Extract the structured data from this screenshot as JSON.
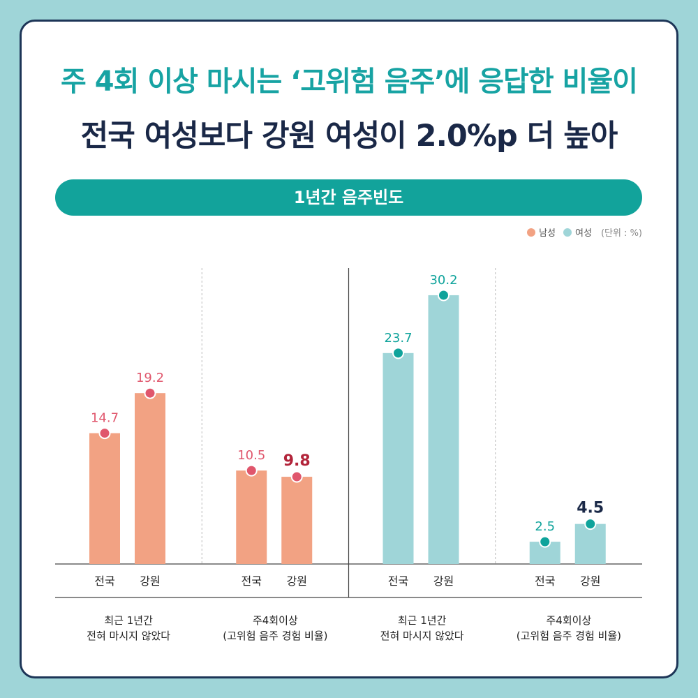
{
  "headline": {
    "line1": "주 4회 이상 마시는 ‘고위험 음주’에 응답한 비율이",
    "line2": "전국 여성보다 강원 여성이 2.0%p 더 높아"
  },
  "chart_title": "1년간 음주빈도",
  "legend": {
    "male": "남성",
    "female": "여성",
    "unit": "(단위 : %)"
  },
  "chart_data": {
    "type": "bar",
    "title": "1년간 음주빈도",
    "ylim": [
      0,
      32
    ],
    "categories": [
      "전국",
      "강원"
    ],
    "groups": [
      {
        "gender": "남성",
        "label": "최근 1년간\n전혀 마시지 않았다",
        "values": [
          14.7,
          19.2
        ],
        "highlight": [
          false,
          false
        ]
      },
      {
        "gender": "남성",
        "label": "주4회이상\n(고위험 음주 경험 비율)",
        "values": [
          10.5,
          9.8
        ],
        "highlight": [
          false,
          true
        ]
      },
      {
        "gender": "여성",
        "label": "최근 1년간\n전혀 마시지 않았다",
        "values": [
          23.7,
          30.2
        ],
        "highlight": [
          false,
          false
        ]
      },
      {
        "gender": "여성",
        "label": "주4회이상\n(고위험 음주 경험 비율)",
        "values": [
          2.5,
          4.5
        ],
        "highlight": [
          false,
          true
        ]
      }
    ]
  },
  "colors": {
    "male_bar": "#f2a283",
    "male_dot": "#e0566c",
    "male_label": "#e0566c",
    "male_highlight": "#b2243a",
    "female_bar": "#9fd5d8",
    "female_dot": "#0fa39b",
    "female_label": "#0fa39b",
    "female_highlight": "#1a2847"
  }
}
